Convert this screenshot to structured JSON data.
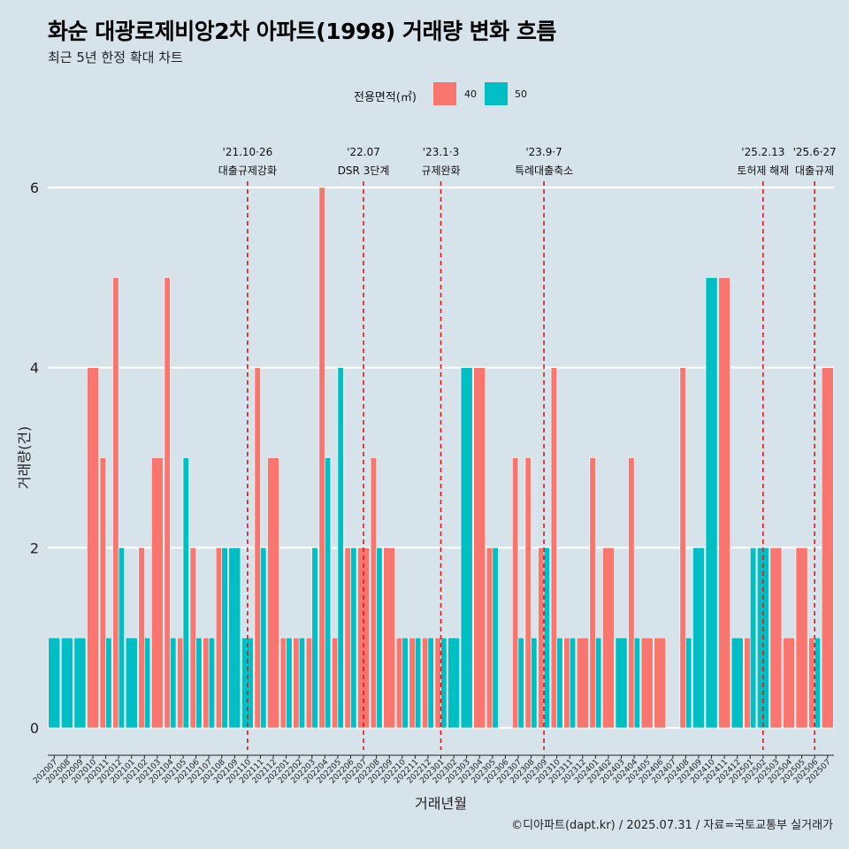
{
  "title": "화순 대광로제비앙2차 아파트(1998) 거래량 변화 흐름",
  "subtitle": "최근 5년 한정 확대 차트",
  "caption": "©디아파트(dapt.kr) / 2025.07.31 / 자료=국토교통부 실거래가",
  "legend": {
    "title": "전용면적(㎡)",
    "items": [
      {
        "label": "40",
        "color": "#f8766d"
      },
      {
        "label": "50",
        "color": "#00bfc4"
      }
    ]
  },
  "chart_data": {
    "type": "bar",
    "stacking": "dodge",
    "xlabel": "거래년월",
    "ylabel": "거래량(건)",
    "ylim": [
      0,
      6
    ],
    "yticks": [
      0,
      2,
      4,
      6
    ],
    "categories": [
      "202007",
      "202008",
      "202009",
      "202010",
      "202011",
      "202012",
      "202101",
      "202102",
      "202103",
      "202104",
      "202105",
      "202106",
      "202107",
      "202108",
      "202109",
      "202110",
      "202111",
      "202112",
      "202201",
      "202202",
      "202203",
      "202204",
      "202205",
      "202206",
      "202207",
      "202208",
      "202209",
      "202210",
      "202211",
      "202212",
      "202301",
      "202302",
      "202303",
      "202304",
      "202305",
      "202306",
      "202307",
      "202308",
      "202309",
      "202310",
      "202311",
      "202312",
      "202401",
      "202402",
      "202403",
      "202404",
      "202405",
      "202406",
      "202407",
      "202408",
      "202409",
      "202410",
      "202411",
      "202412",
      "202501",
      "202502",
      "202503",
      "202504",
      "202505",
      "202506",
      "202507"
    ],
    "series": [
      {
        "name": "40",
        "color": "#f8766d",
        "values": [
          0,
          0,
          0,
          4,
          3,
          5,
          0,
          2,
          3,
          5,
          1,
          2,
          1,
          2,
          0,
          0,
          4,
          3,
          1,
          1,
          1,
          6,
          1,
          2,
          2,
          3,
          2,
          1,
          1,
          1,
          1,
          0,
          0,
          4,
          2,
          0,
          3,
          3,
          2,
          4,
          1,
          1,
          3,
          2,
          0,
          3,
          1,
          1,
          0,
          4,
          0,
          0,
          5,
          0,
          1,
          0,
          2,
          1,
          2,
          1,
          4
        ]
      },
      {
        "name": "50",
        "color": "#00bfc4",
        "values": [
          1,
          1,
          1,
          0,
          1,
          2,
          1,
          1,
          0,
          1,
          3,
          1,
          1,
          2,
          2,
          1,
          2,
          0,
          1,
          1,
          2,
          3,
          4,
          2,
          0,
          2,
          0,
          1,
          1,
          1,
          1,
          1,
          4,
          0,
          2,
          0,
          1,
          1,
          2,
          1,
          1,
          0,
          1,
          0,
          1,
          1,
          0,
          0,
          0,
          1,
          2,
          5,
          0,
          1,
          2,
          2,
          0,
          0,
          0,
          1,
          0
        ]
      }
    ],
    "annotations": [
      {
        "x": "202110",
        "date": "'21.10·26",
        "label": "대출규제강화"
      },
      {
        "x": "202207",
        "date": "'22.07",
        "label": "DSR 3단계"
      },
      {
        "x": "202301",
        "date": "'23.1·3",
        "label": "규제완화"
      },
      {
        "x": "202309",
        "date": "'23.9·7",
        "label": "특례대출축소"
      },
      {
        "x": "202502",
        "date": "'25.2.13",
        "label": "토허제 해제"
      },
      {
        "x": "202506",
        "date": "'25.6·27",
        "label": "대출규제"
      }
    ]
  }
}
